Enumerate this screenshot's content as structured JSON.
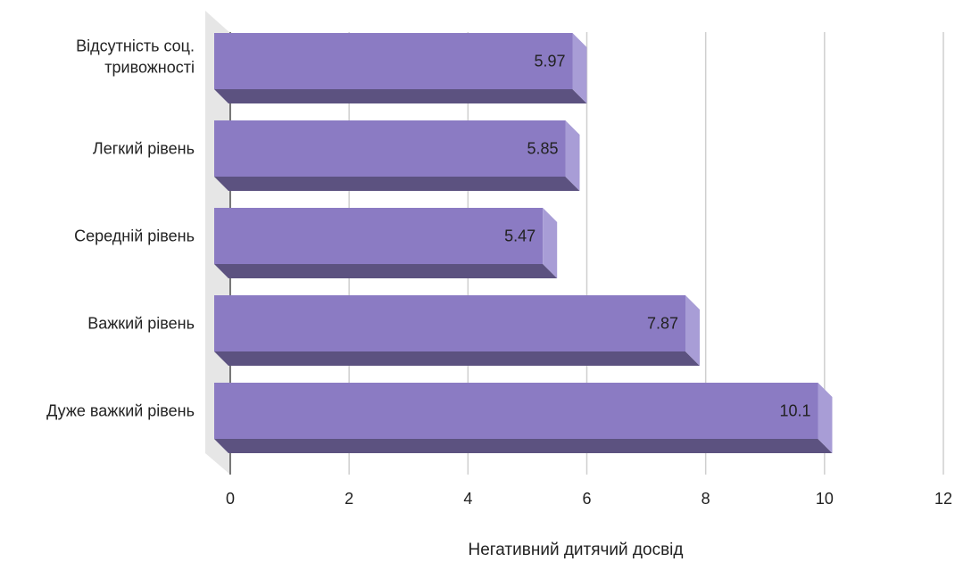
{
  "chart_data": {
    "type": "bar",
    "orientation": "horizontal",
    "style": "3d",
    "categories": [
      [
        "Відсутність соц.",
        "тривожності"
      ],
      [
        "Легкий рівень"
      ],
      [
        "Середній рівень"
      ],
      [
        "Важкий рівень"
      ],
      [
        "Дуже важкий рівень"
      ]
    ],
    "values": [
      5.97,
      5.85,
      5.47,
      7.87,
      10.1
    ],
    "value_labels": [
      "5.97",
      "5.85",
      "5.47",
      "7.87",
      "10.1"
    ],
    "xlabel": "Негативний дитячий досвід",
    "xlim": [
      0,
      12
    ],
    "xticks": [
      0,
      2,
      4,
      6,
      8,
      10,
      12
    ],
    "grid": "vertical",
    "legend": "none",
    "colors": {
      "bar_front": "#8b7bc3",
      "bar_top_side": "#5c5280",
      "bar_end": "#a89dd6",
      "gridline": "#cfcfcf",
      "wall": "#e6e6e6",
      "axis": "#222222"
    }
  }
}
